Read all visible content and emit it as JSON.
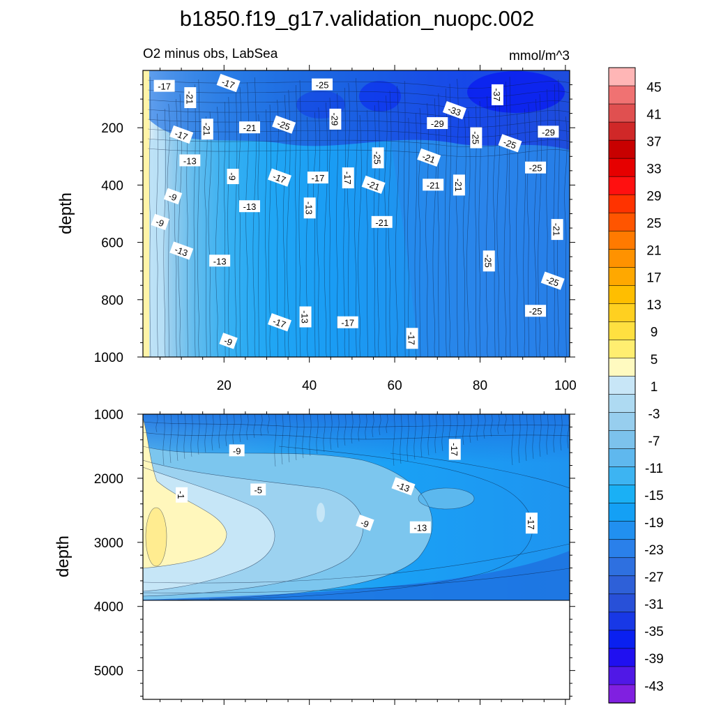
{
  "chart_data": {
    "type": "heatmap",
    "title": "b1850.f19_g17.validation_nuopc.002",
    "subtitle_left": "O2 minus obs, LabSea",
    "subtitle_right": "mmol/m^3",
    "panels": [
      {
        "id": "upper",
        "ylabel": "depth",
        "xlim": [
          1,
          101
        ],
        "ylim": [
          1000,
          0
        ],
        "x_ticks": [
          "20",
          "40",
          "60",
          "80",
          "100"
        ],
        "x_tick_values": [
          20,
          40,
          60,
          80,
          100
        ],
        "y_ticks": [
          "200",
          "400",
          "600",
          "800",
          "1000"
        ],
        "y_tick_values": [
          200,
          400,
          600,
          800,
          1000
        ],
        "contour_labels": [
          {
            "text": "-17",
            "x": 6,
            "y": 55
          },
          {
            "text": "-21",
            "x": 12,
            "y": 95
          },
          {
            "text": "-17",
            "x": 21,
            "y": 45
          },
          {
            "text": "-25",
            "x": 43,
            "y": 50
          },
          {
            "text": "-37",
            "x": 84,
            "y": 85
          },
          {
            "text": "-33",
            "x": 74,
            "y": 140
          },
          {
            "text": "-29",
            "x": 70,
            "y": 185
          },
          {
            "text": "-29",
            "x": 46,
            "y": 170
          },
          {
            "text": "-25",
            "x": 34,
            "y": 190
          },
          {
            "text": "-21",
            "x": 26,
            "y": 200
          },
          {
            "text": "-21",
            "x": 16,
            "y": 205
          },
          {
            "text": "-17",
            "x": 10,
            "y": 225
          },
          {
            "text": "-13",
            "x": 12,
            "y": 315
          },
          {
            "text": "-25",
            "x": 79,
            "y": 235
          },
          {
            "text": "-25",
            "x": 87,
            "y": 255
          },
          {
            "text": "-29",
            "x": 96,
            "y": 215
          },
          {
            "text": "-25",
            "x": 56,
            "y": 305
          },
          {
            "text": "-21",
            "x": 68,
            "y": 305
          },
          {
            "text": "-25",
            "x": 93,
            "y": 340
          },
          {
            "text": "-9",
            "x": 22,
            "y": 370
          },
          {
            "text": "-17",
            "x": 33,
            "y": 375
          },
          {
            "text": "-17",
            "x": 42,
            "y": 375
          },
          {
            "text": "-17",
            "x": 49,
            "y": 375
          },
          {
            "text": "-21",
            "x": 55,
            "y": 400
          },
          {
            "text": "-21",
            "x": 69,
            "y": 400
          },
          {
            "text": "-21",
            "x": 75,
            "y": 400
          },
          {
            "text": "-9",
            "x": 8,
            "y": 440
          },
          {
            "text": "-13",
            "x": 26,
            "y": 475
          },
          {
            "text": "-13",
            "x": 40,
            "y": 480
          },
          {
            "text": "-9",
            "x": 5,
            "y": 530
          },
          {
            "text": "-21",
            "x": 57,
            "y": 530
          },
          {
            "text": "-21",
            "x": 98,
            "y": 555
          },
          {
            "text": "-13",
            "x": 10,
            "y": 630
          },
          {
            "text": "-13",
            "x": 19,
            "y": 665
          },
          {
            "text": "-25",
            "x": 82,
            "y": 665
          },
          {
            "text": "-25",
            "x": 97,
            "y": 735
          },
          {
            "text": "-25",
            "x": 93,
            "y": 840
          },
          {
            "text": "-13",
            "x": 39,
            "y": 860
          },
          {
            "text": "-17",
            "x": 33,
            "y": 880
          },
          {
            "text": "-17",
            "x": 49,
            "y": 880
          },
          {
            "text": "-17",
            "x": 64,
            "y": 935
          },
          {
            "text": "-9",
            "x": 21,
            "y": 945
          }
        ]
      },
      {
        "id": "lower",
        "ylabel": "depth",
        "xlim": [
          1,
          101
        ],
        "ylim": [
          5450,
          1000
        ],
        "data_bottom": 3880,
        "y_ticks": [
          "1000",
          "2000",
          "3000",
          "4000",
          "5000"
        ],
        "y_tick_values": [
          1000,
          2000,
          3000,
          4000,
          5000
        ],
        "contour_labels": [
          {
            "text": "-9",
            "x": 23,
            "y": 1570
          },
          {
            "text": "-17",
            "x": 74,
            "y": 1550
          },
          {
            "text": "-13",
            "x": 62,
            "y": 2130
          },
          {
            "text": "-5",
            "x": 28,
            "y": 2180
          },
          {
            "text": "-1",
            "x": 10,
            "y": 2260
          },
          {
            "text": "-9",
            "x": 53,
            "y": 2700
          },
          {
            "text": "-13",
            "x": 66,
            "y": 2770
          },
          {
            "text": "-17",
            "x": 92,
            "y": 2700
          }
        ]
      }
    ],
    "colorbar": {
      "levels": [
        "45",
        "41",
        "37",
        "33",
        "29",
        "25",
        "21",
        "17",
        "13",
        "9",
        "5",
        "1",
        "-3",
        "-7",
        "-11",
        "-15",
        "-19",
        "-23",
        "-27",
        "-31",
        "-35",
        "-39",
        "-43"
      ],
      "colors": [
        "#FFB6B6",
        "#F07272",
        "#E05050",
        "#D02828",
        "#C80000",
        "#E60000",
        "#FF1010",
        "#FF3300",
        "#FF5500",
        "#FF7A00",
        "#FF9200",
        "#FFA800",
        "#FFBE00",
        "#FFD020",
        "#FFE040",
        "#FFEE70",
        "#FFFAC0",
        "#C8E6F7",
        "#AEDAF2",
        "#97CEEE",
        "#7CC2EC",
        "#5FB8EE",
        "#3DB4F2",
        "#1AB0F5",
        "#14A0F5",
        "#2190F0",
        "#2A80EA",
        "#2E70E0",
        "#2E60D8",
        "#2850D8",
        "#1838E6",
        "#0A20F0",
        "#2010F0",
        "#5018E6",
        "#8020E0"
      ]
    }
  }
}
